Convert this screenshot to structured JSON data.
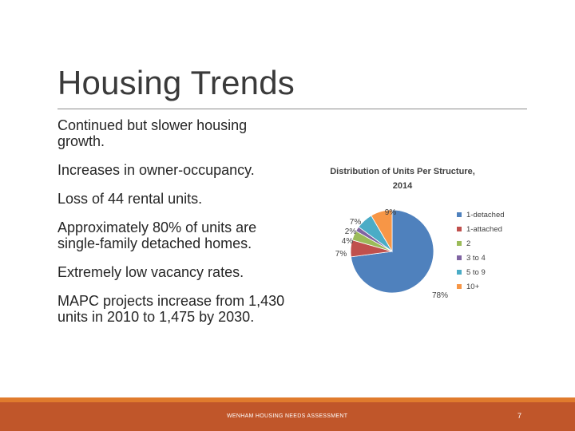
{
  "slide": {
    "title": "Housing Trends",
    "bullets": [
      "Continued but slower housing growth.",
      "Increases in owner-occupancy.",
      "Loss of 44 rental units.",
      "Approximately 80% of units are single-family detached homes.",
      "Extremely low vacancy rates.",
      "MAPC projects increase from 1,430 units in 2010 to 1,475 by 2030."
    ],
    "footer_text": "WENHAM HOUSING NEEDS ASSESSMENT",
    "page_number": "7"
  },
  "chart_data": {
    "type": "pie",
    "title": "Distribution of Units Per Structure, 2014",
    "categories": [
      "1-detached",
      "1-attached",
      "2",
      "3 to 4",
      "5 to 9",
      "10+"
    ],
    "values": [
      78,
      7,
      4,
      2,
      7,
      9
    ],
    "data_labels": [
      "78%",
      "7%",
      "4%",
      "2%",
      "7%",
      "9%"
    ],
    "colors": [
      "#4f81bd",
      "#c0504d",
      "#9bbb59",
      "#8064a2",
      "#4bacc6",
      "#f79646"
    ],
    "legend_position": "right"
  }
}
